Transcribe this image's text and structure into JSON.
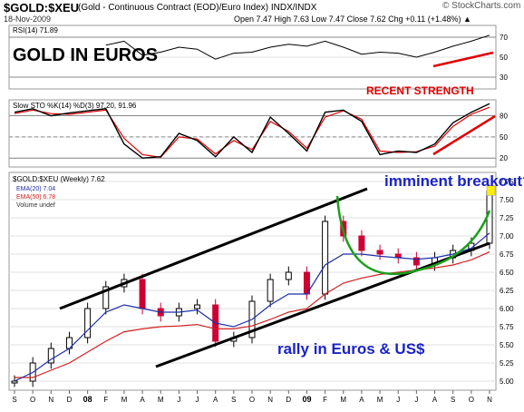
{
  "header": {
    "symbol": "$GOLD:$XEU",
    "description": "(Gold - Continuous Contract (EOD)/Euro Index)  INDX/INDX",
    "date": "18-Nov-2009",
    "ohlc": "Open 7.47  High 7.63  Low 7.47  Close 7.62  Chg +0.11 (+1.48%) ▲",
    "brand": "© StockCharts.com"
  },
  "colors": {
    "price_up": "#000000",
    "price_down": "#cc0033",
    "ema20": "#1f2fa8",
    "ema50": "#d42020",
    "annotation_red": "#e00000",
    "annotation_blue": "#1a22c8",
    "annotation_green": "#1aa01a",
    "last_price_box": "#ffee00"
  },
  "chart_data": [
    {
      "type": "line",
      "name": "rsi-panel",
      "title": "GOLD IN EUROS",
      "legend": "RSI(14) 71.89",
      "ylim": [
        20,
        80
      ],
      "yticks": [
        30,
        50,
        70
      ],
      "reference_lines": [
        30,
        70
      ],
      "x": [
        "2007-09",
        "2007-10",
        "2007-11",
        "2007-12",
        "2008-01",
        "2008-02",
        "2008-03",
        "2008-04",
        "2008-05",
        "2008-06",
        "2008-07",
        "2008-08",
        "2008-09",
        "2008-10",
        "2008-11",
        "2008-12",
        "2009-01",
        "2009-02",
        "2009-03",
        "2009-04",
        "2009-05",
        "2009-06",
        "2009-07",
        "2009-08",
        "2009-09",
        "2009-10",
        "2009-11"
      ],
      "series": [
        {
          "values": [
            null,
            null,
            null,
            null,
            null,
            62,
            66,
            52,
            55,
            60,
            58,
            48,
            54,
            55,
            60,
            63,
            61,
            66,
            60,
            53,
            55,
            54,
            50,
            55,
            61,
            66,
            72
          ]
        }
      ],
      "annotations": [
        "RECENT STRENGTH"
      ]
    },
    {
      "type": "line",
      "name": "stochastic-panel",
      "legend": "Slow STO %K(14) %D(3) 97.20, 91.96",
      "ylim": [
        10,
        100
      ],
      "yticks": [
        20,
        50,
        80
      ],
      "reference_lines": [
        20,
        50,
        80
      ],
      "x": [
        "2007-09",
        "2007-10",
        "2007-11",
        "2007-12",
        "2008-01",
        "2008-02",
        "2008-03",
        "2008-04",
        "2008-05",
        "2008-06",
        "2008-07",
        "2008-08",
        "2008-09",
        "2008-10",
        "2008-11",
        "2008-12",
        "2009-01",
        "2009-02",
        "2009-03",
        "2009-04",
        "2009-05",
        "2009-06",
        "2009-07",
        "2009-08",
        "2009-09",
        "2009-10",
        "2009-11"
      ],
      "series": [
        {
          "name": "%K",
          "values": [
            85,
            90,
            80,
            84,
            87,
            90,
            40,
            20,
            22,
            55,
            45,
            22,
            50,
            28,
            78,
            55,
            30,
            85,
            88,
            72,
            25,
            30,
            28,
            40,
            70,
            85,
            97
          ]
        },
        {
          "name": "%D",
          "values": [
            83,
            88,
            83,
            82,
            85,
            88,
            48,
            25,
            21,
            50,
            47,
            26,
            45,
            32,
            72,
            58,
            34,
            78,
            87,
            75,
            30,
            28,
            29,
            37,
            65,
            82,
            92
          ]
        }
      ]
    },
    {
      "type": "bar",
      "name": "price-panel",
      "legend": [
        "$GOLD:$XEU (Weekly) 7.62",
        "EMA(20) 7.04",
        "EMA(50) 6.78",
        "Volume undef"
      ],
      "ylim": [
        4.9,
        7.85
      ],
      "yticks": [
        5.0,
        5.25,
        5.5,
        5.75,
        6.0,
        6.25,
        6.5,
        6.75,
        7.0,
        7.25,
        7.5,
        7.75
      ],
      "ytick_labels": [
        "5.00",
        "5.25",
        "5.50",
        "5.75",
        "6.00",
        "6.25",
        "6.50",
        "6.75",
        "7.00",
        "7.25",
        "7.50",
        "7.75"
      ],
      "x": [
        "2007-09",
        "2007-10",
        "2007-11",
        "2007-12",
        "2008-01",
        "2008-02",
        "2008-03",
        "2008-04",
        "2008-05",
        "2008-06",
        "2008-07",
        "2008-08",
        "2008-09",
        "2008-10",
        "2008-11",
        "2008-12",
        "2009-01",
        "2009-02",
        "2009-03",
        "2009-04",
        "2009-05",
        "2009-06",
        "2009-07",
        "2009-08",
        "2009-09",
        "2009-10",
        "2009-11"
      ],
      "xtick_labels": [
        "S",
        "O",
        "N",
        "D",
        "08",
        "F",
        "M",
        "A",
        "M",
        "J",
        "J",
        "A",
        "S",
        "O",
        "N",
        "D",
        "09",
        "F",
        "M",
        "A",
        "M",
        "J",
        "J",
        "A",
        "S",
        "O",
        "N"
      ],
      "series": [
        {
          "name": "price",
          "values": [
            5.0,
            5.25,
            5.45,
            5.6,
            6.0,
            6.3,
            6.4,
            6.0,
            5.9,
            6.0,
            6.05,
            5.55,
            5.6,
            6.1,
            6.4,
            6.5,
            6.2,
            7.2,
            7.0,
            6.8,
            6.75,
            6.7,
            6.6,
            6.7,
            6.8,
            6.9,
            7.62
          ]
        },
        {
          "name": "EMA(20)",
          "values": [
            5.0,
            5.12,
            5.3,
            5.45,
            5.7,
            5.95,
            6.05,
            6.0,
            5.95,
            5.95,
            5.98,
            5.8,
            5.75,
            5.85,
            6.05,
            6.2,
            6.2,
            6.6,
            6.75,
            6.75,
            6.72,
            6.7,
            6.68,
            6.7,
            6.75,
            6.83,
            7.04
          ]
        },
        {
          "name": "EMA(50)",
          "values": [
            5.05,
            5.05,
            5.15,
            5.25,
            5.4,
            5.55,
            5.68,
            5.72,
            5.75,
            5.76,
            5.78,
            5.72,
            5.72,
            5.76,
            5.85,
            5.95,
            6.0,
            6.2,
            6.35,
            6.42,
            6.47,
            6.5,
            6.53,
            6.56,
            6.6,
            6.67,
            6.78
          ]
        }
      ],
      "last_price": 7.62,
      "annotations": [
        "imminent breakout?",
        "rally in Euros & US$"
      ]
    }
  ]
}
